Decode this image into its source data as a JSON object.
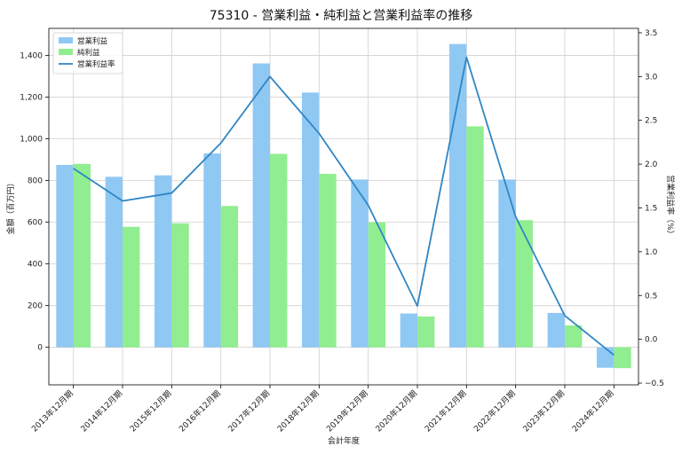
{
  "chart_data": {
    "type": "bar",
    "title": "75310 - 営業利益・純利益と営業利益率の推移",
    "xlabel": "会計年度",
    "ylabel": "金額（百万円）",
    "y2label": "営業利益率（%）",
    "categories": [
      "2013年12月期",
      "2014年12月期",
      "2015年12月期",
      "2016年12月期",
      "2017年12月期",
      "2018年12月期",
      "2019年12月期",
      "2020年12月期",
      "2021年12月期",
      "2022年12月期",
      "2023年12月期",
      "2024年12月期"
    ],
    "ylim": [
      -180,
      1530
    ],
    "y2lim": [
      -0.52,
      3.55
    ],
    "yticks": [
      0,
      200,
      400,
      600,
      800,
      1000,
      1200,
      1400
    ],
    "yticklabels": [
      "0",
      "200",
      "400",
      "600",
      "800",
      "1,000",
      "1,200",
      "1,400"
    ],
    "y2ticks": [
      -0.5,
      0.0,
      0.5,
      1.0,
      1.5,
      2.0,
      2.5,
      3.0,
      3.5
    ],
    "y2ticklabels": [
      "−0.5",
      "0.0",
      "0.5",
      "1.0",
      "1.5",
      "2.0",
      "2.5",
      "3.0",
      "3.5"
    ],
    "grid": true,
    "legend_position": "top-left",
    "series": [
      {
        "name": "営業利益",
        "kind": "bar",
        "color": "#90c8f4",
        "values": [
          875,
          818,
          825,
          930,
          1362,
          1222,
          805,
          162,
          1455,
          805,
          165,
          -98
        ]
      },
      {
        "name": "純利益",
        "kind": "bar",
        "color": "#90ee90",
        "values": [
          880,
          578,
          595,
          678,
          928,
          832,
          600,
          148,
          1060,
          610,
          105,
          -100
        ]
      },
      {
        "name": "営業利益率",
        "kind": "line",
        "axis": "right",
        "color": "#2f86c4",
        "values": [
          1.95,
          1.58,
          1.67,
          2.24,
          3.0,
          2.35,
          1.53,
          0.38,
          3.22,
          1.4,
          0.27,
          -0.18
        ]
      }
    ]
  }
}
